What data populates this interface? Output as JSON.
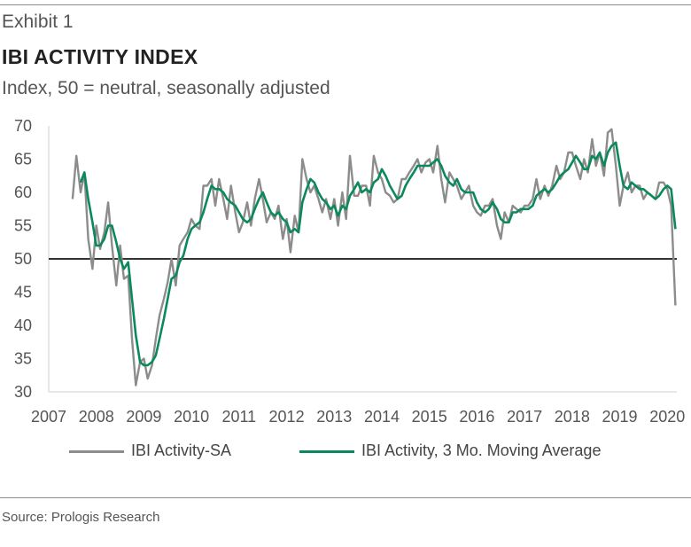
{
  "header": {
    "exhibit": "Exhibit 1",
    "title": "IBI ACTIVITY INDEX",
    "subtitle": "Index, 50 = neutral, seasonally adjusted"
  },
  "source": "Source: Prologis Research",
  "colors": {
    "sa": "#8c8c8c",
    "ma": "#0a8a5a",
    "neutral": "#333333"
  },
  "chart_data": {
    "type": "line",
    "ylim": [
      30,
      70
    ],
    "yticks": [
      30,
      35,
      40,
      45,
      50,
      55,
      60,
      65,
      70
    ],
    "xlim": [
      2007,
      2020.2
    ],
    "xticks": [
      "2007",
      "2008",
      "2009",
      "2010",
      "2011",
      "2012",
      "2013",
      "2014",
      "2015",
      "2016",
      "2017",
      "2018",
      "2019",
      "2020"
    ],
    "reference_line": 50,
    "legend_position": "bottom",
    "series": [
      {
        "name": "IBI Activity-SA",
        "points": [
          [
            2007.5,
            59
          ],
          [
            2007.58,
            65.5
          ],
          [
            2007.67,
            60
          ],
          [
            2007.75,
            63
          ],
          [
            2007.83,
            53
          ],
          [
            2007.92,
            48.5
          ],
          [
            2008.0,
            55
          ],
          [
            2008.08,
            51.5
          ],
          [
            2008.17,
            54
          ],
          [
            2008.25,
            58.5
          ],
          [
            2008.33,
            52
          ],
          [
            2008.42,
            46
          ],
          [
            2008.5,
            52
          ],
          [
            2008.58,
            47
          ],
          [
            2008.67,
            47.5
          ],
          [
            2008.75,
            38
          ],
          [
            2008.83,
            31
          ],
          [
            2008.92,
            34.5
          ],
          [
            2009.0,
            35
          ],
          [
            2009.08,
            32
          ],
          [
            2009.17,
            34
          ],
          [
            2009.25,
            38
          ],
          [
            2009.33,
            41.5
          ],
          [
            2009.42,
            44
          ],
          [
            2009.5,
            46.5
          ],
          [
            2009.58,
            50
          ],
          [
            2009.67,
            46
          ],
          [
            2009.75,
            52
          ],
          [
            2009.83,
            53
          ],
          [
            2009.92,
            54
          ],
          [
            2010.0,
            56
          ],
          [
            2010.08,
            55
          ],
          [
            2010.17,
            54.5
          ],
          [
            2010.25,
            61
          ],
          [
            2010.33,
            61
          ],
          [
            2010.42,
            62
          ],
          [
            2010.5,
            58
          ],
          [
            2010.58,
            62
          ],
          [
            2010.67,
            59
          ],
          [
            2010.75,
            56
          ],
          [
            2010.83,
            61
          ],
          [
            2010.92,
            57
          ],
          [
            2011.0,
            54
          ],
          [
            2011.08,
            55.5
          ],
          [
            2011.17,
            58.5
          ],
          [
            2011.25,
            55
          ],
          [
            2011.33,
            59
          ],
          [
            2011.42,
            62
          ],
          [
            2011.5,
            59
          ],
          [
            2011.58,
            55.5
          ],
          [
            2011.67,
            57
          ],
          [
            2011.75,
            56
          ],
          [
            2011.83,
            58
          ],
          [
            2011.92,
            53
          ],
          [
            2012.0,
            56
          ],
          [
            2012.08,
            51
          ],
          [
            2012.17,
            56.5
          ],
          [
            2012.25,
            54
          ],
          [
            2012.33,
            65
          ],
          [
            2012.42,
            62
          ],
          [
            2012.5,
            60
          ],
          [
            2012.58,
            61
          ],
          [
            2012.67,
            59
          ],
          [
            2012.75,
            57
          ],
          [
            2012.83,
            59
          ],
          [
            2012.92,
            56
          ],
          [
            2013.0,
            59
          ],
          [
            2013.08,
            55
          ],
          [
            2013.17,
            60
          ],
          [
            2013.25,
            56
          ],
          [
            2013.33,
            65.5
          ],
          [
            2013.42,
            59.5
          ],
          [
            2013.5,
            59.5
          ],
          [
            2013.58,
            61
          ],
          [
            2013.67,
            61
          ],
          [
            2013.75,
            58
          ],
          [
            2013.83,
            65.5
          ],
          [
            2013.92,
            63
          ],
          [
            2014.0,
            62
          ],
          [
            2014.08,
            60
          ],
          [
            2014.17,
            59.5
          ],
          [
            2014.25,
            58.5
          ],
          [
            2014.33,
            59
          ],
          [
            2014.42,
            62
          ],
          [
            2014.5,
            62
          ],
          [
            2014.58,
            63
          ],
          [
            2014.67,
            64
          ],
          [
            2014.75,
            65
          ],
          [
            2014.83,
            63
          ],
          [
            2014.92,
            64.5
          ],
          [
            2015.0,
            65
          ],
          [
            2015.08,
            63
          ],
          [
            2015.17,
            67
          ],
          [
            2015.25,
            62
          ],
          [
            2015.33,
            58.5
          ],
          [
            2015.42,
            63
          ],
          [
            2015.5,
            62
          ],
          [
            2015.58,
            61
          ],
          [
            2015.67,
            59
          ],
          [
            2015.75,
            60
          ],
          [
            2015.83,
            61
          ],
          [
            2015.92,
            58
          ],
          [
            2016.0,
            57
          ],
          [
            2016.08,
            56.5
          ],
          [
            2016.17,
            58
          ],
          [
            2016.25,
            58
          ],
          [
            2016.33,
            59
          ],
          [
            2016.42,
            55
          ],
          [
            2016.5,
            53
          ],
          [
            2016.58,
            57
          ],
          [
            2016.67,
            55.5
          ],
          [
            2016.75,
            58
          ],
          [
            2016.83,
            57.5
          ],
          [
            2016.92,
            57
          ],
          [
            2017.0,
            58
          ],
          [
            2017.08,
            58
          ],
          [
            2017.17,
            59
          ],
          [
            2017.25,
            62
          ],
          [
            2017.33,
            59
          ],
          [
            2017.42,
            61
          ],
          [
            2017.5,
            59.5
          ],
          [
            2017.58,
            61
          ],
          [
            2017.67,
            64
          ],
          [
            2017.75,
            62
          ],
          [
            2017.83,
            63
          ],
          [
            2017.92,
            66
          ],
          [
            2018.0,
            66
          ],
          [
            2018.08,
            64
          ],
          [
            2018.17,
            62
          ],
          [
            2018.25,
            65
          ],
          [
            2018.33,
            63
          ],
          [
            2018.42,
            68
          ],
          [
            2018.5,
            64
          ],
          [
            2018.58,
            66
          ],
          [
            2018.67,
            62.5
          ],
          [
            2018.75,
            69
          ],
          [
            2018.83,
            69.5
          ],
          [
            2018.92,
            64
          ],
          [
            2019.0,
            58
          ],
          [
            2019.08,
            61
          ],
          [
            2019.17,
            63
          ],
          [
            2019.25,
            60
          ],
          [
            2019.33,
            61
          ],
          [
            2019.42,
            61
          ],
          [
            2019.5,
            59
          ],
          [
            2019.58,
            60
          ],
          [
            2019.67,
            59.5
          ],
          [
            2019.75,
            59
          ],
          [
            2019.83,
            61.5
          ],
          [
            2019.92,
            61.5
          ],
          [
            2020.0,
            60.5
          ],
          [
            2020.08,
            58
          ],
          [
            2020.17,
            43
          ]
        ]
      },
      {
        "name": "IBI Activity, 3 Mo. Moving Average",
        "points": [
          [
            2007.67,
            61.5
          ],
          [
            2007.75,
            63
          ],
          [
            2007.83,
            59
          ],
          [
            2007.92,
            55.5
          ],
          [
            2008.0,
            52
          ],
          [
            2008.08,
            52
          ],
          [
            2008.17,
            53
          ],
          [
            2008.25,
            55
          ],
          [
            2008.33,
            55
          ],
          [
            2008.42,
            52.5
          ],
          [
            2008.5,
            50
          ],
          [
            2008.58,
            48.5
          ],
          [
            2008.67,
            49.5
          ],
          [
            2008.75,
            44
          ],
          [
            2008.83,
            38.5
          ],
          [
            2008.92,
            34.5
          ],
          [
            2009.0,
            34
          ],
          [
            2009.08,
            34
          ],
          [
            2009.17,
            34.5
          ],
          [
            2009.25,
            35.5
          ],
          [
            2009.33,
            38
          ],
          [
            2009.42,
            41
          ],
          [
            2009.5,
            44
          ],
          [
            2009.58,
            47
          ],
          [
            2009.67,
            47.5
          ],
          [
            2009.75,
            49.5
          ],
          [
            2009.83,
            50.5
          ],
          [
            2009.92,
            53
          ],
          [
            2010.0,
            54.5
          ],
          [
            2010.08,
            55
          ],
          [
            2010.17,
            55.5
          ],
          [
            2010.25,
            57
          ],
          [
            2010.33,
            59
          ],
          [
            2010.42,
            61
          ],
          [
            2010.5,
            60.5
          ],
          [
            2010.58,
            60.5
          ],
          [
            2010.67,
            60
          ],
          [
            2010.75,
            59
          ],
          [
            2010.83,
            58.5
          ],
          [
            2010.92,
            58
          ],
          [
            2011.0,
            57
          ],
          [
            2011.08,
            56
          ],
          [
            2011.17,
            55.5
          ],
          [
            2011.25,
            56
          ],
          [
            2011.33,
            57.5
          ],
          [
            2011.42,
            59
          ],
          [
            2011.5,
            60
          ],
          [
            2011.58,
            58.5
          ],
          [
            2011.67,
            57
          ],
          [
            2011.75,
            56.5
          ],
          [
            2011.83,
            57
          ],
          [
            2011.92,
            56
          ],
          [
            2012.0,
            55.5
          ],
          [
            2012.08,
            54
          ],
          [
            2012.17,
            54.5
          ],
          [
            2012.25,
            54
          ],
          [
            2012.33,
            58.5
          ],
          [
            2012.42,
            60.5
          ],
          [
            2012.5,
            62
          ],
          [
            2012.58,
            61.5
          ],
          [
            2012.67,
            60
          ],
          [
            2012.75,
            59
          ],
          [
            2012.83,
            58.5
          ],
          [
            2012.92,
            57.5
          ],
          [
            2013.0,
            58
          ],
          [
            2013.08,
            56.5
          ],
          [
            2013.17,
            58
          ],
          [
            2013.25,
            57.5
          ],
          [
            2013.33,
            59.5
          ],
          [
            2013.42,
            60.5
          ],
          [
            2013.5,
            61.5
          ],
          [
            2013.58,
            60
          ],
          [
            2013.67,
            60.5
          ],
          [
            2013.75,
            60
          ],
          [
            2013.83,
            61.5
          ],
          [
            2013.92,
            62
          ],
          [
            2014.0,
            63.5
          ],
          [
            2014.08,
            62.5
          ],
          [
            2014.17,
            61
          ],
          [
            2014.25,
            60
          ],
          [
            2014.33,
            59
          ],
          [
            2014.42,
            59.5
          ],
          [
            2014.5,
            61
          ],
          [
            2014.58,
            62
          ],
          [
            2014.67,
            63
          ],
          [
            2014.75,
            64
          ],
          [
            2014.83,
            64
          ],
          [
            2014.92,
            64
          ],
          [
            2015.0,
            64
          ],
          [
            2015.08,
            64.5
          ],
          [
            2015.17,
            65
          ],
          [
            2015.25,
            64
          ],
          [
            2015.33,
            62.5
          ],
          [
            2015.42,
            61.5
          ],
          [
            2015.5,
            61
          ],
          [
            2015.58,
            62
          ],
          [
            2015.67,
            60.5
          ],
          [
            2015.75,
            60
          ],
          [
            2015.83,
            60
          ],
          [
            2015.92,
            60
          ],
          [
            2016.0,
            58.5
          ],
          [
            2016.08,
            57.5
          ],
          [
            2016.17,
            57
          ],
          [
            2016.25,
            57.5
          ],
          [
            2016.33,
            58.5
          ],
          [
            2016.42,
            57.5
          ],
          [
            2016.5,
            56
          ],
          [
            2016.58,
            55.5
          ],
          [
            2016.67,
            55.5
          ],
          [
            2016.75,
            57
          ],
          [
            2016.83,
            57
          ],
          [
            2016.92,
            57.5
          ],
          [
            2017.0,
            57.5
          ],
          [
            2017.08,
            57.5
          ],
          [
            2017.17,
            58
          ],
          [
            2017.25,
            59.5
          ],
          [
            2017.33,
            60
          ],
          [
            2017.42,
            60.5
          ],
          [
            2017.5,
            60
          ],
          [
            2017.58,
            60.5
          ],
          [
            2017.67,
            61.5
          ],
          [
            2017.75,
            62.5
          ],
          [
            2017.83,
            63
          ],
          [
            2017.92,
            63.5
          ],
          [
            2018.0,
            64.5
          ],
          [
            2018.08,
            65.5
          ],
          [
            2018.17,
            64.5
          ],
          [
            2018.25,
            63.5
          ],
          [
            2018.33,
            63.5
          ],
          [
            2018.42,
            65.5
          ],
          [
            2018.5,
            65
          ],
          [
            2018.58,
            66
          ],
          [
            2018.67,
            64
          ],
          [
            2018.75,
            66
          ],
          [
            2018.83,
            67
          ],
          [
            2018.92,
            67.5
          ],
          [
            2019.0,
            64
          ],
          [
            2019.08,
            61
          ],
          [
            2019.17,
            60.5
          ],
          [
            2019.25,
            61.5
          ],
          [
            2019.33,
            61
          ],
          [
            2019.42,
            60.5
          ],
          [
            2019.5,
            60.5
          ],
          [
            2019.58,
            60
          ],
          [
            2019.67,
            59.5
          ],
          [
            2019.75,
            59
          ],
          [
            2019.83,
            59.5
          ],
          [
            2019.92,
            60.5
          ],
          [
            2020.0,
            61
          ],
          [
            2020.08,
            60.5
          ],
          [
            2020.17,
            54.5
          ]
        ]
      }
    ]
  }
}
